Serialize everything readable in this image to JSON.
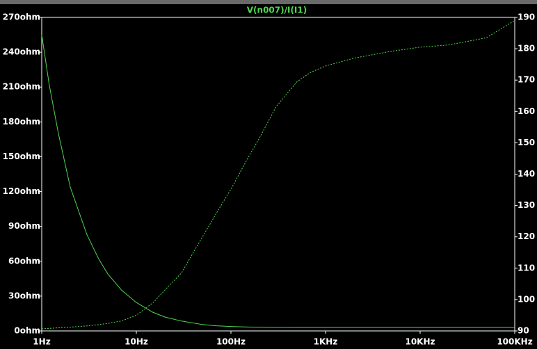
{
  "chart_data": {
    "type": "line",
    "title": "V(n007)/I(I1)",
    "log_x": true,
    "x": [
      1,
      1.2,
      1.5,
      2,
      3,
      4,
      5,
      7,
      10,
      15,
      20,
      30,
      50,
      70,
      100,
      150,
      200,
      300,
      500,
      700,
      1000,
      2000,
      5000,
      10000,
      20000,
      50000,
      100000
    ],
    "xlim": [
      1,
      100000
    ],
    "xticks": [
      {
        "value": 1,
        "label": "1Hz"
      },
      {
        "value": 10,
        "label": "10Hz"
      },
      {
        "value": 100,
        "label": "100Hz"
      },
      {
        "value": 1000,
        "label": "1KHz"
      },
      {
        "value": 10000,
        "label": "10KHz"
      },
      {
        "value": 100000,
        "label": "100KHz"
      }
    ],
    "ylim": [
      0,
      270
    ],
    "yticks": [
      {
        "value": 0,
        "label": "0ohm"
      },
      {
        "value": 30,
        "label": "30ohm"
      },
      {
        "value": 60,
        "label": "60ohm"
      },
      {
        "value": 90,
        "label": "90ohm"
      },
      {
        "value": 120,
        "label": "120ohm"
      },
      {
        "value": 150,
        "label": "150ohm"
      },
      {
        "value": 180,
        "label": "180ohm"
      },
      {
        "value": 210,
        "label": "210ohm"
      },
      {
        "value": 240,
        "label": "240ohm"
      },
      {
        "value": 270,
        "label": "270ohm"
      }
    ],
    "y2lim": [
      90,
      190
    ],
    "y2ticks": [
      90,
      100,
      110,
      120,
      130,
      140,
      150,
      160,
      170,
      180,
      190
    ],
    "series": [
      {
        "color": "#4fd84f",
        "axis": "y",
        "dashed": false,
        "values": [
          255,
          212,
          170,
          124,
          83,
          62,
          49,
          35,
          24.5,
          16,
          12,
          8.5,
          5.5,
          4.4,
          3.8,
          3.4,
          3.2,
          3.1,
          3,
          3,
          3,
          3,
          3,
          3,
          3,
          3,
          3
        ]
      },
      {
        "color": "#4fd84f",
        "axis": "y2",
        "dashed": true,
        "values": [
          90.7,
          90.8,
          91,
          91.2,
          91.6,
          92,
          92.4,
          93.2,
          95,
          99,
          103,
          108.5,
          120,
          127.5,
          135.2,
          145,
          151.5,
          161.5,
          169.5,
          172.5,
          174.5,
          177,
          179.2,
          180.5,
          181.2,
          183.5,
          189
        ]
      }
    ]
  }
}
